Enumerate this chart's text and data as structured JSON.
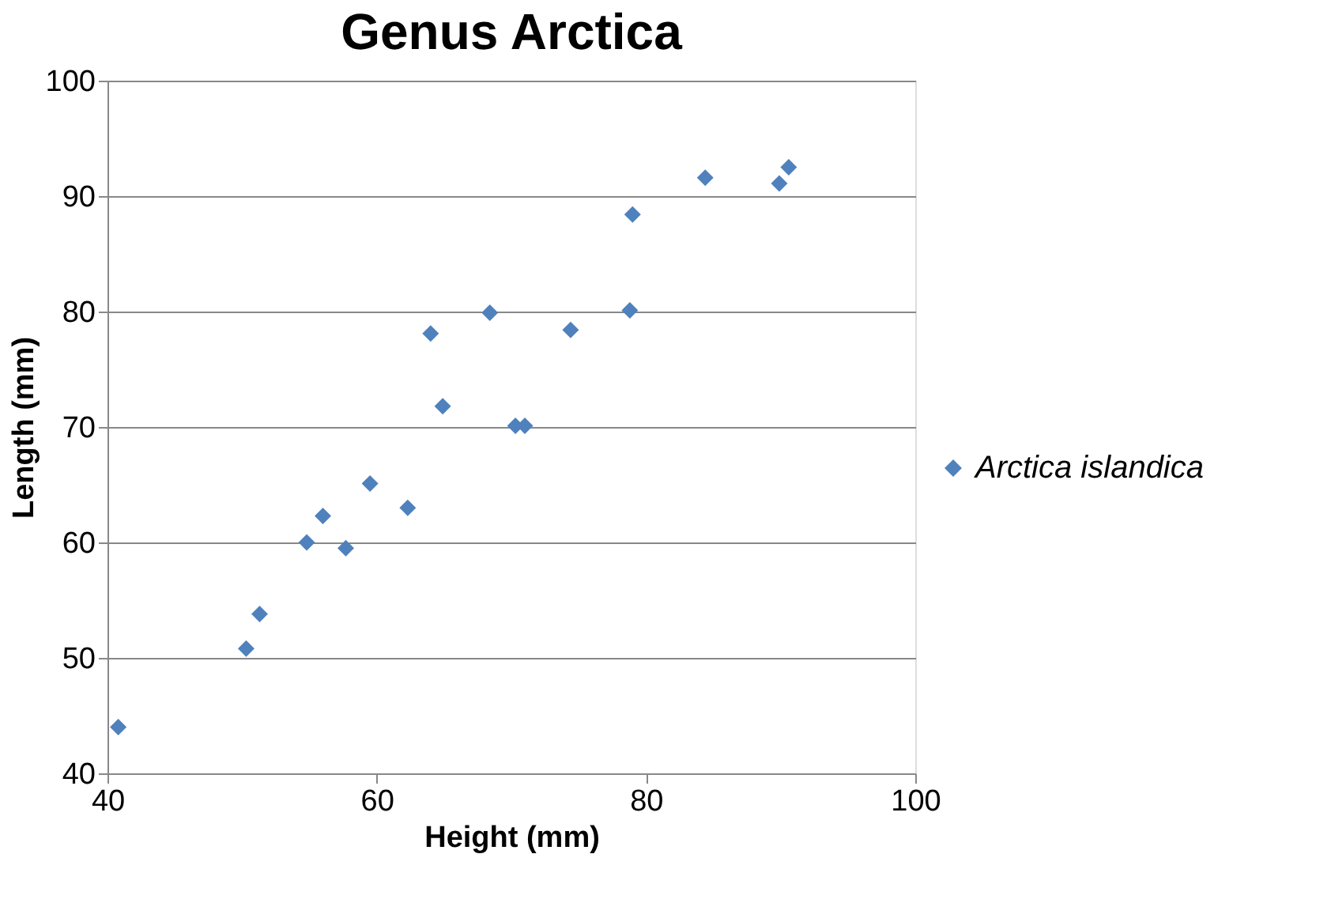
{
  "chart_data": {
    "type": "scatter",
    "title": "Genus Arctica",
    "xlabel": "Height (mm)",
    "ylabel": "Length (mm)",
    "xlim": [
      40,
      100
    ],
    "xticks": [
      40,
      60,
      80,
      100
    ],
    "ylim": [
      40,
      100
    ],
    "yticks": [
      40,
      50,
      60,
      70,
      80,
      90,
      100
    ],
    "grid": "y",
    "legend": "right",
    "marker": "diamond",
    "series": [
      {
        "name": "Arctica islandica",
        "color": "#4f81bd",
        "x": [
          40.8,
          50.3,
          51.3,
          54.8,
          56.0,
          57.7,
          59.5,
          62.3,
          64.0,
          64.9,
          68.4,
          70.3,
          71.0,
          74.4,
          78.8,
          79.0,
          84.4,
          89.9,
          90.6
        ],
        "values": [
          44.0,
          50.8,
          53.8,
          60.0,
          62.3,
          59.5,
          65.1,
          63.0,
          78.1,
          71.8,
          79.9,
          70.1,
          70.1,
          78.4,
          80.1,
          88.4,
          91.6,
          91.1,
          92.5
        ]
      }
    ]
  }
}
